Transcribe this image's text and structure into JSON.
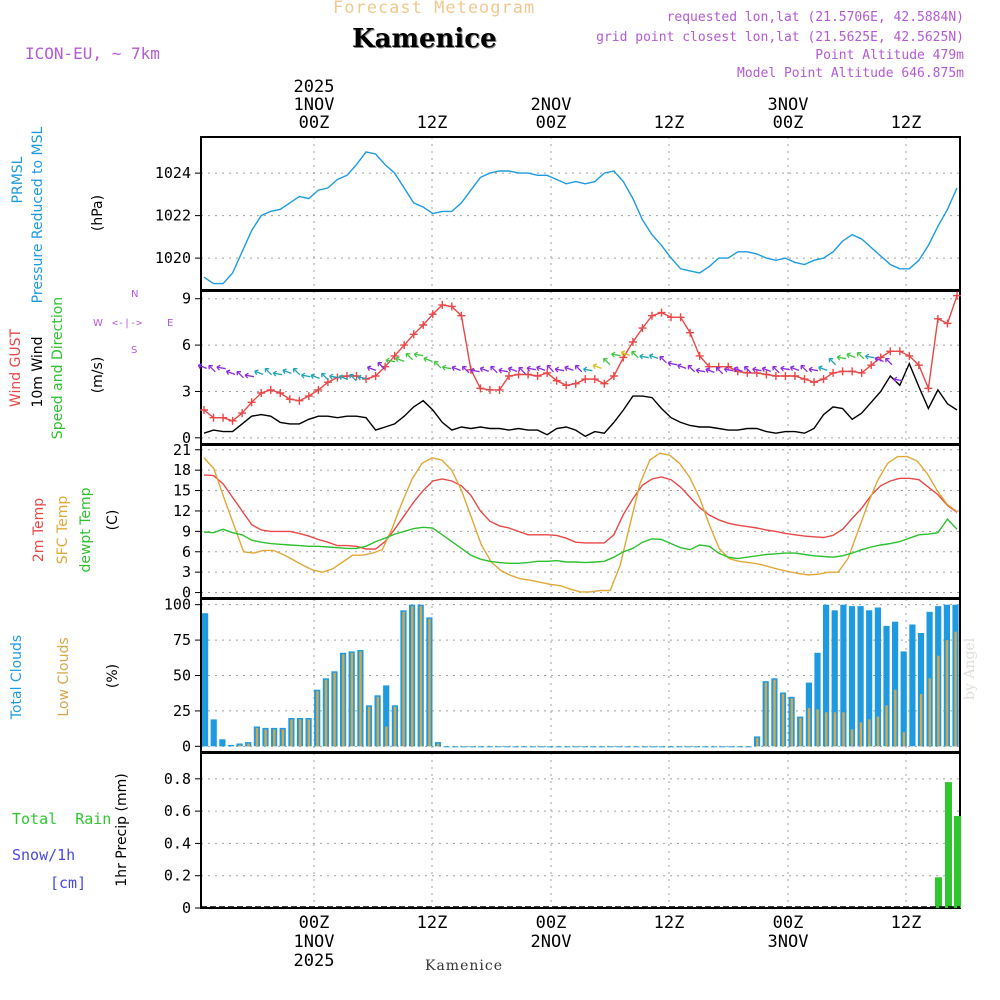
{
  "header": {
    "title": "Forecast Meteogram",
    "station": "Kamenice",
    "model": "ICON-EU, ~ 7km",
    "requested": "requested lon,lat (21.5706E, 42.5884N)",
    "gridpoint": "grid point closest lon,lat (21.5625E, 42.5625N)",
    "point_alt": "Point Altitude 479m",
    "model_alt": "Model Point Altitude 646.875m",
    "credit": "by Angel"
  },
  "labels": {
    "prmsl_a": "PRMSL",
    "prmsl_b": "Pressure Reduced to MSL",
    "hpa": "(hPa)",
    "gust": "Wind GUST",
    "wind10": "10m Wind",
    "wind_dir": "Speed and Direction",
    "ms": "(m/s)",
    "compass_n": "N",
    "compass_s": "S",
    "compass_w": "W",
    "compass_e": "E",
    "compass_arrows": "<-|->",
    "temp2m": "2m Temp",
    "sfctemp": "SFC Temp",
    "dewpt": "dewpt Temp",
    "degc": "(C)",
    "total_clouds": "Total Clouds",
    "low_clouds": "Low Clouds",
    "pct": "(%)",
    "total_rain": "Total  Rain",
    "snow": "Snow/1h",
    "cm": "[cm]",
    "precip": "1hr Precip (mm)",
    "bottom_station": "Kamenice"
  },
  "colors": {
    "pressure": "#1e9be0",
    "gust": "#e84848",
    "wind": "#000000",
    "temp2m": "#e84848",
    "sfc": "#e0a838",
    "dewpt": "#2ec02e",
    "total_clouds": "#1e9be0",
    "low_clouds": "#d4a84a",
    "rain": "#2ec82e",
    "snow": "#4848e8"
  },
  "chart_data": [
    {
      "type": "line",
      "title": "PRMSL Pressure Reduced to MSL",
      "ylabel": "hPa",
      "ylim": [
        1018.5,
        1025.7
      ],
      "yticks": [
        1020,
        1022,
        1024
      ],
      "series": [
        {
          "name": "Pressure",
          "values": [
            1019.1,
            1018.8,
            1018.8,
            1019.3,
            1020.3,
            1021.3,
            1022.0,
            1022.2,
            1022.3,
            1022.6,
            1022.9,
            1022.8,
            1023.2,
            1023.3,
            1023.7,
            1023.9,
            1024.4,
            1025.0,
            1024.9,
            1024.4,
            1024.0,
            1023.3,
            1022.6,
            1022.4,
            1022.1,
            1022.2,
            1022.2,
            1022.6,
            1023.2,
            1023.8,
            1024.0,
            1024.1,
            1024.1,
            1024.0,
            1024.0,
            1023.9,
            1023.9,
            1023.7,
            1023.5,
            1023.6,
            1023.5,
            1023.6,
            1024.0,
            1024.1,
            1023.6,
            1022.8,
            1021.8,
            1021.1,
            1020.6,
            1020.0,
            1019.5,
            1019.4,
            1019.3,
            1019.6,
            1020.0,
            1020.0,
            1020.3,
            1020.3,
            1020.2,
            1020.0,
            1019.9,
            1020.0,
            1019.8,
            1019.7,
            1019.9,
            1020.0,
            1020.3,
            1020.8,
            1021.1,
            1020.9,
            1020.5,
            1020.1,
            1019.7,
            1019.5,
            1019.5,
            1019.9,
            1020.6,
            1021.5,
            1022.3,
            1023.3
          ]
        }
      ]
    },
    {
      "type": "line",
      "title": "Wind GUST / 10m Wind Speed and Direction",
      "ylabel": "m/s",
      "ylim": [
        -0.4,
        9.5
      ],
      "yticks": [
        0,
        3,
        6,
        9
      ],
      "series": [
        {
          "name": "Wind GUST",
          "values": [
            1.8,
            1.3,
            1.3,
            1.1,
            1.6,
            2.3,
            2.9,
            3.1,
            2.9,
            2.5,
            2.4,
            2.7,
            3.1,
            3.6,
            3.9,
            4.0,
            4.0,
            3.8,
            4.0,
            4.6,
            5.3,
            6.0,
            6.7,
            7.3,
            8.0,
            8.6,
            8.5,
            7.9,
            4.4,
            3.2,
            3.1,
            3.1,
            4.0,
            4.1,
            4.1,
            4.0,
            4.2,
            3.7,
            3.4,
            3.5,
            3.8,
            3.8,
            3.5,
            4.0,
            5.2,
            6.2,
            7.1,
            7.9,
            8.1,
            7.8,
            7.8,
            6.8,
            5.3,
            4.6,
            4.6,
            4.6,
            4.3,
            4.2,
            4.2,
            4.1,
            4.0,
            4.0,
            4.0,
            3.8,
            3.6,
            3.8,
            4.2,
            4.3,
            4.3,
            4.2,
            4.7,
            5.2,
            5.6,
            5.6,
            5.3,
            4.7,
            3.2,
            7.7,
            7.4,
            9.2
          ]
        },
        {
          "name": "10m Wind",
          "values": [
            0.3,
            0.5,
            0.4,
            0.4,
            0.9,
            1.4,
            1.5,
            1.4,
            1.0,
            0.9,
            0.9,
            1.2,
            1.4,
            1.4,
            1.3,
            1.4,
            1.4,
            1.3,
            0.5,
            0.7,
            0.9,
            1.4,
            2.0,
            2.4,
            1.8,
            1.0,
            0.5,
            0.7,
            0.6,
            0.7,
            0.6,
            0.6,
            0.5,
            0.6,
            0.5,
            0.5,
            0.2,
            0.6,
            0.7,
            0.5,
            0.1,
            0.4,
            0.3,
            1.0,
            1.8,
            2.7,
            2.7,
            2.6,
            1.9,
            1.3,
            1.0,
            0.8,
            0.7,
            0.7,
            0.6,
            0.5,
            0.5,
            0.6,
            0.6,
            0.4,
            0.3,
            0.4,
            0.4,
            0.3,
            0.6,
            1.5,
            2.0,
            1.9,
            1.2,
            1.6,
            2.3,
            3.0,
            4.0,
            3.4,
            4.8,
            3.3,
            1.9,
            3.1,
            2.2,
            1.8
          ]
        }
      ]
    },
    {
      "type": "line",
      "title": "2m Temp / SFC Temp / dewpt Temp",
      "ylabel": "C",
      "ylim": [
        -0.8,
        21.7
      ],
      "yticks": [
        0,
        3,
        6,
        9,
        12,
        15,
        18,
        21
      ],
      "series": [
        {
          "name": "2m Temp",
          "values": [
            17.3,
            17.2,
            16.0,
            14.0,
            12.0,
            10.0,
            9.2,
            9.0,
            9.0,
            9.0,
            8.7,
            8.3,
            7.8,
            7.4,
            6.9,
            6.9,
            6.8,
            6.4,
            6.4,
            7.5,
            9.3,
            11.3,
            13.3,
            15.0,
            16.4,
            16.7,
            16.4,
            15.7,
            14.3,
            12.0,
            10.5,
            9.8,
            9.5,
            9.0,
            8.5,
            8.5,
            8.5,
            8.4,
            8.0,
            7.4,
            7.3,
            7.3,
            7.3,
            8.5,
            11.5,
            13.8,
            15.8,
            16.7,
            17.0,
            16.6,
            15.5,
            14.0,
            12.5,
            11.4,
            10.7,
            10.2,
            9.9,
            9.7,
            9.5,
            9.2,
            9.0,
            8.7,
            8.5,
            8.3,
            8.2,
            8.1,
            8.4,
            9.3,
            10.9,
            12.4,
            14.3,
            15.7,
            16.4,
            16.8,
            16.8,
            16.6,
            15.5,
            14.4,
            12.8,
            11.8
          ]
        },
        {
          "name": "SFC Temp",
          "values": [
            19.8,
            18.2,
            14.0,
            10.0,
            6.0,
            5.8,
            6.2,
            6.2,
            5.6,
            4.8,
            4.0,
            3.3,
            3.0,
            3.5,
            4.5,
            5.5,
            5.5,
            5.8,
            6.3,
            9.5,
            13.3,
            16.7,
            19.0,
            19.8,
            19.5,
            18.0,
            15.0,
            11.0,
            7.0,
            4.5,
            3.2,
            2.5,
            2.0,
            1.8,
            1.5,
            1.2,
            1.0,
            0.5,
            0.1,
            0.1,
            0.3,
            0.3,
            4.0,
            10.0,
            16.0,
            19.5,
            20.5,
            20.2,
            19.0,
            17.0,
            14.0,
            10.0,
            6.5,
            5.0,
            4.6,
            4.4,
            4.2,
            3.8,
            3.4,
            3.1,
            2.8,
            2.6,
            2.7,
            3.0,
            3.0,
            5.0,
            9.0,
            13.0,
            16.5,
            19.0,
            20.0,
            20.0,
            19.3,
            17.5,
            15.0,
            13.0,
            11.9
          ]
        },
        {
          "name": "dewpt Temp",
          "values": [
            8.9,
            8.8,
            9.3,
            8.8,
            8.5,
            7.7,
            7.4,
            7.2,
            7.1,
            7.0,
            6.9,
            6.8,
            6.8,
            6.7,
            6.6,
            6.5,
            6.5,
            6.8,
            7.5,
            8.0,
            8.6,
            9.0,
            9.4,
            9.6,
            9.5,
            8.5,
            7.5,
            6.5,
            5.5,
            4.9,
            4.6,
            4.4,
            4.3,
            4.3,
            4.4,
            4.6,
            4.6,
            4.7,
            4.5,
            4.5,
            4.4,
            4.5,
            4.6,
            5.2,
            6.0,
            6.5,
            7.4,
            7.9,
            7.8,
            7.2,
            6.6,
            6.3,
            7.0,
            6.8,
            5.8,
            5.2,
            5.0,
            5.2,
            5.4,
            5.6,
            5.7,
            5.8,
            5.8,
            5.6,
            5.4,
            5.3,
            5.2,
            5.4,
            5.8,
            6.3,
            6.7,
            7.0,
            7.2,
            7.5,
            8.0,
            8.5,
            8.6,
            8.8,
            10.8,
            9.3
          ]
        }
      ]
    },
    {
      "type": "bar",
      "title": "Total Clouds / Low Clouds",
      "ylabel": "%",
      "ylim": [
        -4,
        104
      ],
      "yticks": [
        0,
        25,
        50,
        75,
        100
      ],
      "series": [
        {
          "name": "Total Clouds",
          "values": [
            94,
            19,
            5,
            1,
            2,
            3,
            14,
            13,
            13,
            13,
            20,
            20,
            20,
            40,
            48,
            53,
            66,
            67,
            68,
            29,
            36,
            43,
            29,
            96,
            100,
            100,
            91,
            3,
            0,
            0,
            0,
            0,
            0,
            0,
            0,
            0,
            0,
            0,
            0,
            0,
            0,
            0,
            0,
            0,
            0,
            0,
            0,
            0,
            0,
            0,
            0,
            0,
            0,
            0,
            0,
            0,
            0,
            0,
            0,
            0,
            0,
            0,
            0,
            0,
            7,
            46,
            48,
            38,
            35,
            21,
            45,
            66,
            100,
            96,
            100,
            99,
            99,
            96,
            98,
            85,
            88,
            67,
            86,
            80,
            95,
            99,
            100,
            100
          ]
        },
        {
          "name": "Low Clouds",
          "values": [
            0,
            0,
            0,
            0,
            1,
            2,
            13,
            12,
            12,
            12,
            19,
            19,
            19,
            39,
            47,
            52,
            65,
            66,
            67,
            28,
            35,
            14,
            28,
            95,
            99,
            99,
            90,
            2,
            0,
            0,
            0,
            0,
            0,
            0,
            0,
            0,
            0,
            0,
            0,
            0,
            0,
            0,
            0,
            0,
            0,
            0,
            0,
            0,
            0,
            0,
            0,
            0,
            0,
            0,
            0,
            0,
            0,
            0,
            0,
            0,
            0,
            0,
            0,
            0,
            6,
            45,
            47,
            37,
            34,
            20,
            27,
            26,
            24,
            24,
            24,
            12,
            17,
            19,
            21,
            29,
            40,
            10,
            0,
            37,
            48,
            64,
            75,
            81
          ]
        }
      ]
    },
    {
      "type": "bar",
      "title": "Total Rain / Snow 1h",
      "ylabel": "1hr Precip (mm)",
      "ylim": [
        0,
        0.96
      ],
      "yticks": [
        0,
        0.2,
        0.4,
        0.6,
        0.8
      ],
      "series": [
        {
          "name": "Total Rain",
          "values": [
            0.19,
            0.78,
            0.57
          ]
        },
        {
          "name": "Snow/1h",
          "values": [
            0,
            0,
            0
          ]
        }
      ]
    }
  ],
  "time_axis": {
    "top": [
      {
        "line1": "2025",
        "line2": "1NOV",
        "line3": "00Z"
      },
      {
        "line1": "",
        "line2": "",
        "line3": "12Z"
      },
      {
        "line1": "",
        "line2": "2NOV",
        "line3": "00Z"
      },
      {
        "line1": "",
        "line2": "",
        "line3": "12Z"
      },
      {
        "line1": "",
        "line2": "3NOV",
        "line3": "00Z"
      },
      {
        "line1": "",
        "line2": "",
        "line3": "12Z"
      }
    ],
    "bottom": [
      {
        "line1": "00Z",
        "line2": "1NOV",
        "line3": "2025"
      },
      {
        "line1": "12Z",
        "line2": "",
        "line3": ""
      },
      {
        "line1": "00Z",
        "line2": "2NOV",
        "line3": ""
      },
      {
        "line1": "12Z",
        "line2": "",
        "line3": ""
      },
      {
        "line1": "00Z",
        "line2": "3NOV",
        "line3": ""
      },
      {
        "line1": "12Z",
        "line2": "",
        "line3": ""
      }
    ]
  }
}
